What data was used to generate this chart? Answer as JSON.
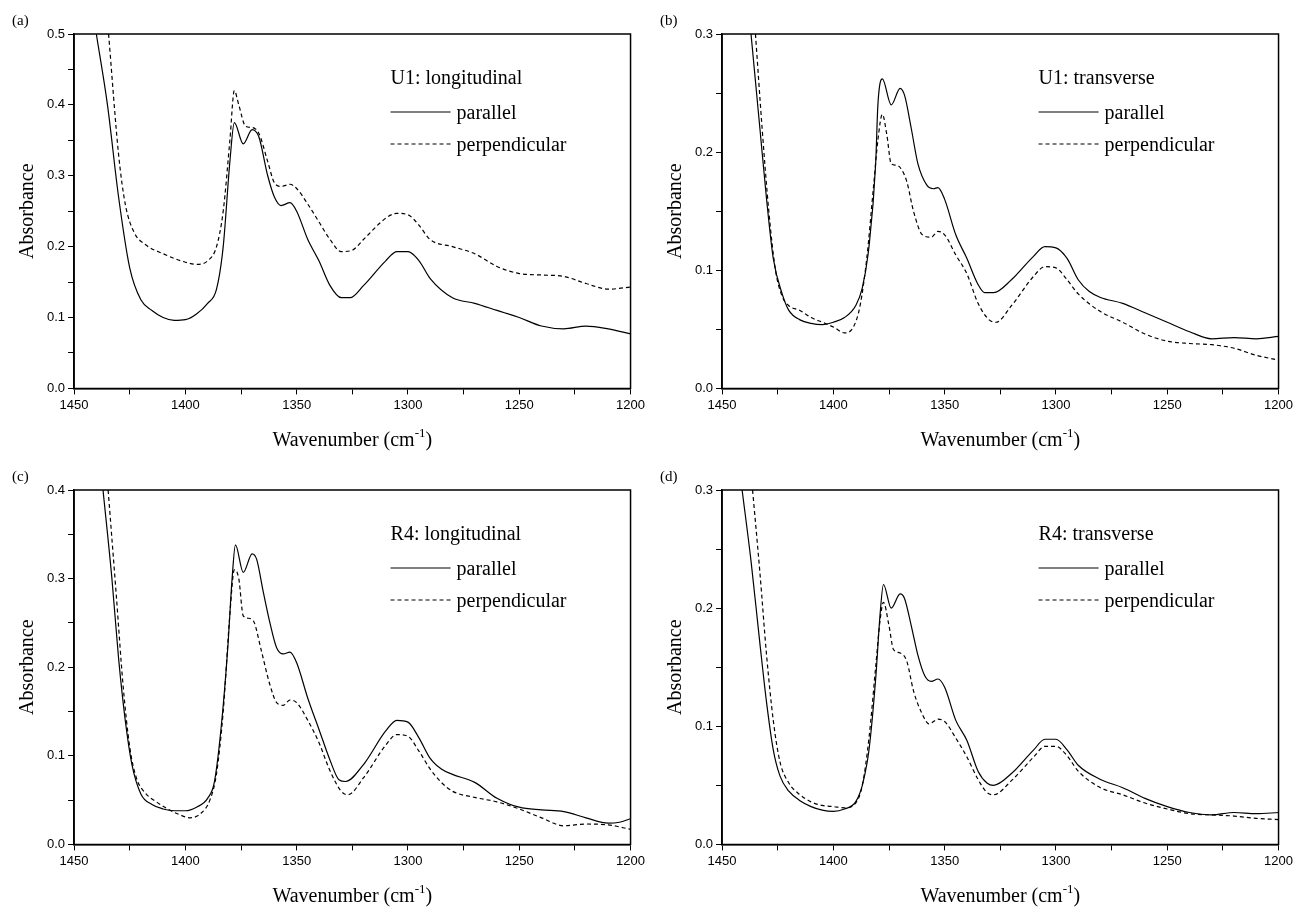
{
  "chart_data": [
    {
      "type": "line",
      "title": "(a)",
      "legend_title": "U1: longitudinal",
      "xlabel": "Wavenumber (cm$^{-1}$)",
      "ylabel": "Absorbance",
      "xlim": [
        1450,
        1200
      ],
      "xticks": [
        1450,
        {
          "value": 1425,
          "label": null
        },
        1400,
        {
          "value": 1375,
          "label": null
        },
        1350,
        {
          "value": 1325,
          "label": null
        },
        1300,
        {
          "value": 1275,
          "label": null
        },
        1250,
        {
          "value": 1225,
          "label": null
        },
        1200
      ],
      "ylim": [
        0,
        0.5
      ],
      "yticks": [
        "0.0",
        {
          "value": 0.05,
          "label": null
        },
        0.1,
        {
          "value": 0.15,
          "label": null
        },
        0.2,
        {
          "value": 0.25,
          "label": null
        },
        0.3,
        {
          "value": 0.35,
          "label": null
        },
        0.4,
        {
          "value": 0.45,
          "label": null
        },
        0.5
      ],
      "grid": false,
      "legend": "top right",
      "marker": "none",
      "series": [
        {
          "name": "parallel",
          "color": "#000000",
          "line_style": "solid",
          "x": [
            1440,
            1435,
            1430,
            1425,
            1420,
            1415,
            1410,
            1405,
            1400,
            1395,
            1390,
            1386,
            1383,
            1380,
            1378,
            1374,
            1370,
            1367,
            1363,
            1360,
            1357,
            1353,
            1350,
            1345,
            1340,
            1335,
            1330,
            1326,
            1320,
            1310,
            1305,
            1300,
            1295,
            1290,
            1280,
            1270,
            1260,
            1250,
            1240,
            1230,
            1220,
            1210,
            1200
          ],
          "values": [
            0.5,
            0.4,
            0.27,
            0.17,
            0.125,
            0.11,
            0.1,
            0.096,
            0.097,
            0.105,
            0.12,
            0.14,
            0.2,
            0.32,
            0.375,
            0.345,
            0.365,
            0.355,
            0.3,
            0.27,
            0.258,
            0.262,
            0.25,
            0.21,
            0.18,
            0.145,
            0.128,
            0.128,
            0.145,
            0.18,
            0.193,
            0.193,
            0.18,
            0.155,
            0.128,
            0.12,
            0.11,
            0.1,
            0.088,
            0.084,
            0.088,
            0.084,
            0.077
          ]
        },
        {
          "name": "perpendicular",
          "color": "#000000",
          "line_style": "dashed",
          "x": [
            1434.5,
            1430,
            1427,
            1423,
            1418,
            1410,
            1400,
            1395,
            1390,
            1386,
            1383,
            1380,
            1378,
            1376,
            1373,
            1370,
            1367,
            1363,
            1360,
            1357,
            1353,
            1350,
            1345,
            1340,
            1335,
            1330,
            1325,
            1320,
            1310,
            1305,
            1300,
            1295,
            1290,
            1280,
            1270,
            1260,
            1250,
            1240,
            1230,
            1220,
            1210,
            1200
          ],
          "values": [
            0.5,
            0.33,
            0.26,
            0.22,
            0.203,
            0.19,
            0.178,
            0.175,
            0.18,
            0.2,
            0.25,
            0.35,
            0.42,
            0.4,
            0.37,
            0.368,
            0.36,
            0.32,
            0.29,
            0.285,
            0.288,
            0.282,
            0.26,
            0.235,
            0.21,
            0.193,
            0.195,
            0.21,
            0.24,
            0.247,
            0.245,
            0.23,
            0.21,
            0.2,
            0.19,
            0.172,
            0.162,
            0.16,
            0.158,
            0.148,
            0.14,
            0.143
          ]
        }
      ]
    },
    {
      "type": "line",
      "title": "(b)",
      "legend_title": "U1: transverse",
      "xlabel": "Wavenumber (cm$^{-1}$)",
      "ylabel": "Absorbance",
      "xlim": [
        1450,
        1200
      ],
      "xticks": [
        1450,
        {
          "value": 1425,
          "label": null
        },
        1400,
        {
          "value": 1375,
          "label": null
        },
        1350,
        {
          "value": 1325,
          "label": null
        },
        1300,
        {
          "value": 1275,
          "label": null
        },
        1250,
        {
          "value": 1225,
          "label": null
        },
        1200
      ],
      "ylim": [
        0,
        0.3
      ],
      "yticks": [
        "0.0",
        {
          "value": 0.05,
          "label": null
        },
        0.1,
        {
          "value": 0.15,
          "label": null
        },
        0.2,
        {
          "value": 0.25,
          "label": null
        },
        0.3
      ],
      "grid": false,
      "legend": "top right",
      "marker": "none",
      "series": [
        {
          "name": "parallel",
          "color": "#000000",
          "line_style": "solid",
          "x": [
            1437,
            1433,
            1430,
            1427,
            1423,
            1420,
            1415,
            1410,
            1405,
            1400,
            1395,
            1390,
            1387,
            1384,
            1381,
            1380,
            1378,
            1374,
            1370,
            1368,
            1365,
            1362,
            1358,
            1355,
            1353,
            1350,
            1345,
            1340,
            1335,
            1332,
            1328,
            1320,
            1310,
            1305,
            1300,
            1295,
            1290,
            1285,
            1280,
            1270,
            1260,
            1250,
            1240,
            1230,
            1220,
            1210,
            1200
          ],
          "values": [
            0.3,
            0.22,
            0.16,
            0.11,
            0.08,
            0.066,
            0.058,
            0.055,
            0.054,
            0.056,
            0.06,
            0.07,
            0.085,
            0.12,
            0.19,
            0.24,
            0.262,
            0.24,
            0.254,
            0.248,
            0.22,
            0.19,
            0.172,
            0.169,
            0.17,
            0.16,
            0.13,
            0.11,
            0.088,
            0.081,
            0.081,
            0.092,
            0.112,
            0.12,
            0.119,
            0.11,
            0.092,
            0.082,
            0.077,
            0.072,
            0.064,
            0.056,
            0.048,
            0.042,
            0.043,
            0.042,
            0.044
          ]
        },
        {
          "name": "perpendicular",
          "color": "#000000",
          "line_style": "dashed",
          "x": [
            1435,
            1432,
            1429,
            1426,
            1423,
            1420,
            1415,
            1410,
            1405,
            1400,
            1395,
            1391,
            1388,
            1385,
            1382,
            1380,
            1378,
            1376,
            1374,
            1372,
            1370,
            1367,
            1364,
            1360,
            1356,
            1353,
            1350,
            1345,
            1340,
            1335,
            1330,
            1327,
            1320,
            1310,
            1305,
            1300,
            1295,
            1290,
            1280,
            1270,
            1260,
            1250,
            1240,
            1230,
            1220,
            1210,
            1200
          ],
          "values": [
            0.3,
            0.22,
            0.15,
            0.1,
            0.078,
            0.07,
            0.066,
            0.06,
            0.056,
            0.052,
            0.047,
            0.052,
            0.07,
            0.11,
            0.17,
            0.21,
            0.232,
            0.215,
            0.19,
            0.189,
            0.187,
            0.175,
            0.15,
            0.13,
            0.128,
            0.133,
            0.13,
            0.113,
            0.097,
            0.072,
            0.058,
            0.056,
            0.07,
            0.095,
            0.103,
            0.102,
            0.092,
            0.08,
            0.065,
            0.056,
            0.046,
            0.04,
            0.038,
            0.037,
            0.034,
            0.028,
            0.024
          ]
        }
      ]
    },
    {
      "type": "line",
      "title": "(c)",
      "legend_title": "R4: longitudinal",
      "xlabel": "Wavenumber (cm$^{-1}$)",
      "ylabel": "Absorbance",
      "xlim": [
        1450,
        1200
      ],
      "xticks": [
        1450,
        {
          "value": 1425,
          "label": null
        },
        1400,
        {
          "value": 1375,
          "label": null
        },
        1350,
        {
          "value": 1325,
          "label": null
        },
        1300,
        {
          "value": 1275,
          "label": null
        },
        1250,
        {
          "value": 1225,
          "label": null
        },
        1200
      ],
      "ylim": [
        0,
        0.4
      ],
      "yticks": [
        "0.0",
        {
          "value": 0.05,
          "label": null
        },
        0.1,
        {
          "value": 0.15,
          "label": null
        },
        0.2,
        {
          "value": 0.25,
          "label": null
        },
        0.3,
        {
          "value": 0.35,
          "label": null
        },
        0.4
      ],
      "grid": false,
      "legend": "top right",
      "marker": "none",
      "series": [
        {
          "name": "parallel",
          "color": "#000000",
          "line_style": "solid",
          "x": [
            1437,
            1433,
            1430,
            1427,
            1424,
            1420,
            1415,
            1410,
            1405,
            1400,
            1395,
            1390,
            1387,
            1384,
            1381,
            1379,
            1377.5,
            1374,
            1370,
            1368,
            1365,
            1362,
            1359,
            1356,
            1353,
            1350,
            1345,
            1340,
            1335,
            1331,
            1328,
            1320,
            1310,
            1305,
            1300,
            1295,
            1290,
            1285,
            1280,
            1270,
            1260,
            1250,
            1240,
            1230,
            1220,
            1210,
            1205,
            1200
          ],
          "values": [
            0.4,
            0.3,
            0.21,
            0.14,
            0.09,
            0.057,
            0.045,
            0.04,
            0.038,
            0.038,
            0.042,
            0.052,
            0.07,
            0.13,
            0.22,
            0.3,
            0.338,
            0.307,
            0.328,
            0.322,
            0.285,
            0.25,
            0.222,
            0.215,
            0.217,
            0.205,
            0.165,
            0.13,
            0.095,
            0.073,
            0.071,
            0.09,
            0.128,
            0.14,
            0.138,
            0.12,
            0.097,
            0.085,
            0.079,
            0.07,
            0.052,
            0.042,
            0.039,
            0.037,
            0.03,
            0.024,
            0.025,
            0.029
          ]
        },
        {
          "name": "perpendicular",
          "color": "#000000",
          "line_style": "dashed",
          "x": [
            1434.7,
            1431,
            1428,
            1425,
            1422,
            1418,
            1413,
            1408,
            1403,
            1398,
            1393,
            1389,
            1386,
            1383,
            1380,
            1378,
            1376,
            1374,
            1371,
            1369,
            1366,
            1362,
            1359,
            1356,
            1353,
            1350,
            1345,
            1340,
            1335,
            1330,
            1327,
            1320,
            1310,
            1305,
            1300,
            1295,
            1290,
            1285,
            1280,
            1270,
            1260,
            1250,
            1240,
            1230,
            1220,
            1210,
            1200
          ],
          "values": [
            0.4,
            0.28,
            0.18,
            0.11,
            0.075,
            0.058,
            0.048,
            0.04,
            0.034,
            0.03,
            0.035,
            0.05,
            0.08,
            0.15,
            0.26,
            0.31,
            0.3,
            0.258,
            0.255,
            0.25,
            0.22,
            0.18,
            0.16,
            0.157,
            0.163,
            0.16,
            0.14,
            0.115,
            0.083,
            0.06,
            0.056,
            0.075,
            0.112,
            0.124,
            0.122,
            0.105,
            0.085,
            0.07,
            0.06,
            0.053,
            0.048,
            0.04,
            0.03,
            0.021,
            0.023,
            0.022,
            0.017
          ]
        }
      ]
    },
    {
      "type": "line",
      "title": "(d)",
      "legend_title": "R4: transverse",
      "xlabel": "Wavenumber (cm$^{-1}$)",
      "ylabel": "Absorbance",
      "xlim": [
        1450,
        1200
      ],
      "xticks": [
        1450,
        {
          "value": 1425,
          "label": null
        },
        1400,
        {
          "value": 1375,
          "label": null
        },
        1350,
        {
          "value": 1325,
          "label": null
        },
        1300,
        {
          "value": 1275,
          "label": null
        },
        1250,
        {
          "value": 1225,
          "label": null
        },
        1200
      ],
      "ylim": [
        0,
        0.3
      ],
      "yticks": [
        "0.0",
        {
          "value": 0.05,
          "label": null
        },
        0.1,
        {
          "value": 0.15,
          "label": null
        },
        0.2,
        {
          "value": 0.25,
          "label": null
        },
        0.3
      ],
      "grid": false,
      "legend": "top right",
      "marker": "none",
      "series": [
        {
          "name": "parallel",
          "color": "#000000",
          "line_style": "solid",
          "x": [
            1441,
            1437,
            1433,
            1430,
            1427,
            1424,
            1420,
            1415,
            1410,
            1405,
            1400,
            1395,
            1390,
            1387,
            1384,
            1381,
            1379,
            1377.5,
            1374,
            1370,
            1368,
            1365,
            1362,
            1359,
            1356,
            1353,
            1350,
            1345,
            1340,
            1335,
            1331,
            1328,
            1320,
            1310,
            1305,
            1300,
            1295,
            1290,
            1280,
            1270,
            1260,
            1250,
            1240,
            1230,
            1220,
            1210,
            1200
          ],
          "values": [
            0.3,
            0.24,
            0.17,
            0.12,
            0.08,
            0.058,
            0.045,
            0.037,
            0.032,
            0.029,
            0.028,
            0.03,
            0.036,
            0.05,
            0.08,
            0.14,
            0.195,
            0.22,
            0.2,
            0.212,
            0.208,
            0.185,
            0.16,
            0.143,
            0.138,
            0.14,
            0.133,
            0.105,
            0.088,
            0.062,
            0.052,
            0.05,
            0.06,
            0.08,
            0.089,
            0.089,
            0.08,
            0.067,
            0.055,
            0.048,
            0.039,
            0.032,
            0.027,
            0.025,
            0.027,
            0.026,
            0.027
          ]
        },
        {
          "name": "perpendicular",
          "color": "#000000",
          "line_style": "dashed",
          "x": [
            1436.3,
            1433,
            1430,
            1427,
            1424,
            1420,
            1415,
            1410,
            1405,
            1400,
            1395,
            1390,
            1387,
            1384,
            1381,
            1379,
            1377.5,
            1375,
            1373,
            1370,
            1367,
            1364,
            1360,
            1357,
            1353,
            1350,
            1345,
            1340,
            1335,
            1331,
            1328,
            1320,
            1310,
            1305,
            1300,
            1295,
            1290,
            1280,
            1270,
            1260,
            1250,
            1240,
            1230,
            1220,
            1210,
            1200
          ],
          "values": [
            0.3,
            0.23,
            0.16,
            0.105,
            0.07,
            0.052,
            0.042,
            0.036,
            0.033,
            0.032,
            0.031,
            0.035,
            0.05,
            0.09,
            0.15,
            0.19,
            0.205,
            0.185,
            0.165,
            0.162,
            0.155,
            0.13,
            0.11,
            0.102,
            0.106,
            0.104,
            0.09,
            0.074,
            0.055,
            0.044,
            0.042,
            0.054,
            0.074,
            0.083,
            0.083,
            0.075,
            0.062,
            0.048,
            0.042,
            0.035,
            0.03,
            0.026,
            0.025,
            0.024,
            0.022,
            0.021
          ]
        }
      ]
    }
  ]
}
